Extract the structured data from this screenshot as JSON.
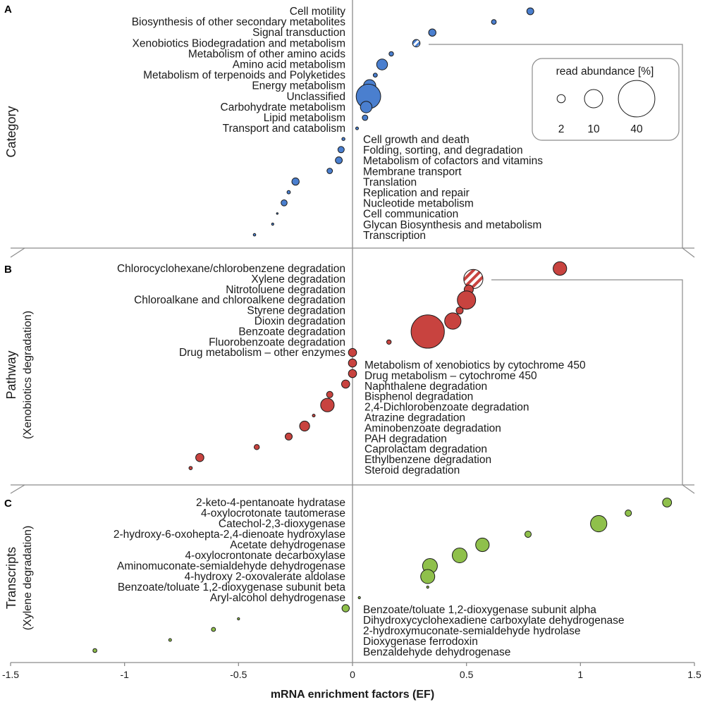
{
  "chart_data": {
    "type": "scatter",
    "xlabel": "mRNA enrichment factors (EF)",
    "xlim": [
      -1.5,
      1.5
    ],
    "x_ticks": [
      "-1.5",
      "-1",
      "-0.5",
      "0",
      "0.5",
      "1",
      "1.5"
    ],
    "legend": {
      "title": "read abundance [%]",
      "entries": [
        {
          "label": "2",
          "size": 2
        },
        {
          "label": "10",
          "size": 10
        },
        {
          "label": "40",
          "size": 40
        }
      ]
    },
    "colors": {
      "category": "#4a7fcf",
      "pathway": "#c8433f",
      "transcripts": "#8fc04b"
    },
    "panels": [
      {
        "letter": "A",
        "ylabel": "Category",
        "ylabel_sub": "",
        "color_key": "category",
        "points": [
          {
            "label": "Cell motility",
            "ef": 0.78,
            "abundance": 1.4
          },
          {
            "label": "Biosynthesis of other secondary metabolites",
            "ef": 0.62,
            "abundance": 0.7
          },
          {
            "label": "Signal transduction",
            "ef": 0.35,
            "abundance": 1.6
          },
          {
            "label": "Xenobiotics Biodegradation and metabolism",
            "ef": 0.28,
            "abundance": 1.7,
            "highlight": true
          },
          {
            "label": "Metabolism of other amino acids",
            "ef": 0.17,
            "abundance": 0.6
          },
          {
            "label": "Amino acid metabolism",
            "ef": 0.13,
            "abundance": 3.5
          },
          {
            "label": "Metabolism of terpenoids and Polyketides",
            "ef": 0.1,
            "abundance": 0.5
          },
          {
            "label": "Energy metabolism",
            "ef": 0.075,
            "abundance": 4.5
          },
          {
            "label": "Unclassified",
            "ef": 0.07,
            "abundance": 18
          },
          {
            "label": "Carbohydrate metabolism",
            "ef": 0.06,
            "abundance": 4
          },
          {
            "label": "Lipid metabolism",
            "ef": 0.055,
            "abundance": 0.9
          },
          {
            "label": "Transport and catabolism",
            "ef": 0.02,
            "abundance": 0.25
          },
          {
            "label": "Cell growth and death",
            "ef": -0.04,
            "abundance": 0.3
          },
          {
            "label": "Folding, sorting, and degradation",
            "ef": -0.05,
            "abundance": 1.2
          },
          {
            "label": "Metabolism of cofactors and vitamins",
            "ef": -0.06,
            "abundance": 1.4
          },
          {
            "label": "Membrane transport",
            "ef": -0.1,
            "abundance": 0.9
          },
          {
            "label": "Translation",
            "ef": -0.25,
            "abundance": 1.6
          },
          {
            "label": "Replication and repair",
            "ef": -0.28,
            "abundance": 0.35
          },
          {
            "label": "Nucleotide metabolism",
            "ef": -0.3,
            "abundance": 1.1
          },
          {
            "label": "Cell communication",
            "ef": -0.33,
            "abundance": 0.02
          },
          {
            "label": "Glycan Biosynthesis and metabolism",
            "ef": -0.35,
            "abundance": 0.15
          },
          {
            "label": "Transcription",
            "ef": -0.43,
            "abundance": 0.2
          }
        ]
      },
      {
        "letter": "B",
        "ylabel": "Pathway",
        "ylabel_sub": "(Xenobiotics degradation)",
        "color_key": "pathway",
        "points": [
          {
            "label": "Chlorocyclohexane/chlorobenzene degradation",
            "ef": 0.91,
            "abundance": 5.5
          },
          {
            "label": "Xylene degradation",
            "ef": 0.53,
            "abundance": 11,
            "highlight": true
          },
          {
            "label": "Nitrotoluene degradation",
            "ef": 0.51,
            "abundance": 2.5
          },
          {
            "label": "Chloroalkane and chloroalkene degradation",
            "ef": 0.5,
            "abundance": 10
          },
          {
            "label": "Styrene degradation",
            "ef": 0.47,
            "abundance": 1.5
          },
          {
            "label": "Dioxin degradation",
            "ef": 0.44,
            "abundance": 8
          },
          {
            "label": "Benzoate degradation",
            "ef": 0.33,
            "abundance": 33
          },
          {
            "label": "Fluorobenzoate degradation",
            "ef": 0.16,
            "abundance": 0.6
          },
          {
            "label": "Drug metabolism – other enzymes",
            "ef": 0.0,
            "abundance": 2
          },
          {
            "label": "Metabolism of xenobiotics by cytochrome 450",
            "ef": 0.0,
            "abundance": 2
          },
          {
            "label": "Drug metabolism – cytochrome 450",
            "ef": 0.0,
            "abundance": 2
          },
          {
            "label": "Naphthalene degradation",
            "ef": -0.03,
            "abundance": 2
          },
          {
            "label": "Bisphenol degradation",
            "ef": -0.1,
            "abundance": 1.2
          },
          {
            "label": "2,4-Dichlorobenzoate degradation",
            "ef": -0.11,
            "abundance": 5.5
          },
          {
            "label": "Atrazine degradation",
            "ef": -0.17,
            "abundance": 0.25
          },
          {
            "label": "Aminobenzoate degradation",
            "ef": -0.21,
            "abundance": 3
          },
          {
            "label": "PAH degradation",
            "ef": -0.28,
            "abundance": 1.5
          },
          {
            "label": "Caprolactam degradation",
            "ef": -0.42,
            "abundance": 0.8
          },
          {
            "label": "Ethylbenzene degradation",
            "ef": -0.67,
            "abundance": 2
          },
          {
            "label": "Steroid degradation",
            "ef": -0.71,
            "abundance": 0.35
          }
        ]
      },
      {
        "letter": "C",
        "ylabel": "Transcripts",
        "ylabel_sub": "(Xylene degradation)",
        "color_key": "transcripts",
        "points": [
          {
            "label": "2-keto-4-pentanoate hydratase",
            "ef": 1.38,
            "abundance": 2.4
          },
          {
            "label": "4-oxylocrotonate tautomerase",
            "ef": 1.21,
            "abundance": 1.2
          },
          {
            "label": "Catechol-2,3-dioxygenase",
            "ef": 1.08,
            "abundance": 8
          },
          {
            "label": "2-hydroxy-6-oxohepta-2,4-dienoate hydroxylase",
            "ef": 0.77,
            "abundance": 1.2
          },
          {
            "label": "Acetate dehydrogenase",
            "ef": 0.57,
            "abundance": 5.5
          },
          {
            "label": "4-oxylocrontonate decarboxylase",
            "ef": 0.47,
            "abundance": 6.5
          },
          {
            "label": "Aminomuconate-semialdehyde dehydrogenase",
            "ef": 0.34,
            "abundance": 6.5
          },
          {
            "label": "4-hydroxy 2-oxovalerate aldolase",
            "ef": 0.33,
            "abundance": 6
          },
          {
            "label": "Benzoate/toluate 1,2-dioxygenase subunit beta",
            "ef": 0.33,
            "abundance": 0.15
          },
          {
            "label": "Aryl-alcohol dehydrogenase",
            "ef": 0.03,
            "abundance": 0.15
          },
          {
            "label": "Benzoate/toluate 1,2-dioxygenase subunit alpha",
            "ef": -0.03,
            "abundance": 1.6
          },
          {
            "label": "Dihydroxycyclohexadiene carboxylate dehydrogenase",
            "ef": -0.5,
            "abundance": 0.15
          },
          {
            "label": "2-hydroxymuconate-semialdehyde hydrolase",
            "ef": -0.61,
            "abundance": 0.5
          },
          {
            "label": "Dioxygenase ferrodoxin",
            "ef": -0.8,
            "abundance": 0.25
          },
          {
            "label": "Benzaldehyde dehydrogenase",
            "ef": -1.13,
            "abundance": 0.45
          }
        ]
      }
    ]
  }
}
